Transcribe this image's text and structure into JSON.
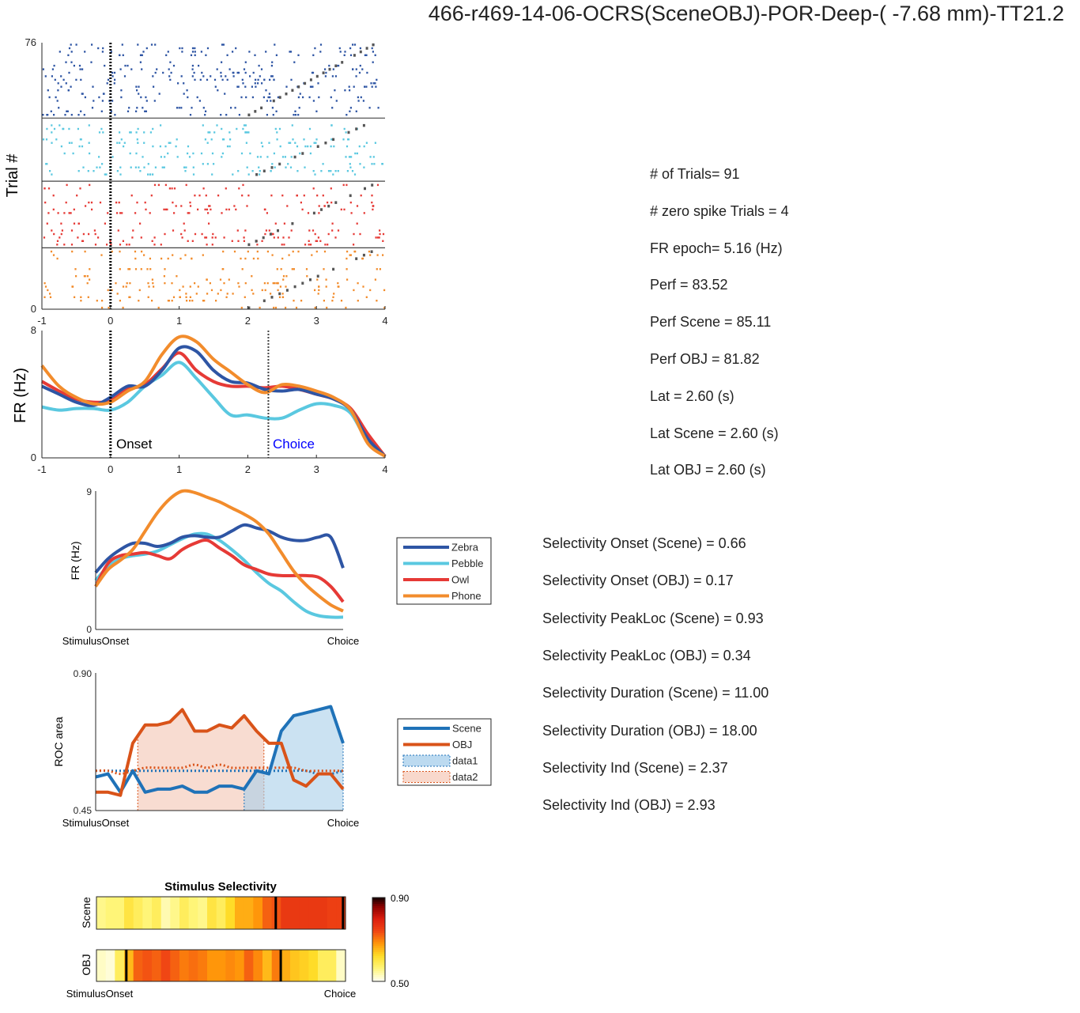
{
  "page_title": "466-r469-14-06-OCRS(SceneOBJ)-POR-Deep-( -7.68 mm)-TT21.2",
  "stats": [
    "# of Trials= 91",
    "# zero spike Trials = 4",
    "FR epoch= 5.16 (Hz)",
    "Perf = 83.52",
    "Perf Scene = 85.11",
    "Perf OBJ = 81.82",
    "Lat = 2.60 (s)",
    "Lat Scene = 2.60 (s)",
    "Lat OBJ = 2.60 (s)"
  ],
  "selectivity": [
    "Selectivity Onset (Scene) = 0.66",
    "Selectivity Onset (OBJ) = 0.17",
    "Selectivity PeakLoc (Scene) = 0.93",
    "Selectivity PeakLoc (OBJ) = 0.34",
    "Selectivity Duration (Scene) = 11.00",
    "Selectivity Duration (OBJ) = 18.00",
    "Selectivity Ind (Scene) = 2.37",
    "Selectivity Ind (OBJ) = 2.93"
  ],
  "colors": {
    "zebra": "#2e55a4",
    "pebble": "#5ac8e0",
    "owl": "#e63a36",
    "phone": "#f28c2c",
    "scene": "#1f72b8",
    "obj": "#d95319",
    "trial_marker": "#555555",
    "choice_line": "#0000ff"
  },
  "chart_data": [
    {
      "type": "scatter",
      "ylabel": "Trial #",
      "xlim": [
        -1,
        4
      ],
      "ylim": [
        0,
        76
      ],
      "xticks": [
        "-1",
        "0",
        "1",
        "2",
        "3",
        "4"
      ],
      "yticks": [
        "0",
        "76"
      ],
      "group_boundaries": [
        17.5,
        36.5,
        54.5
      ],
      "groups": [
        "Zebra",
        "Pebble",
        "Owl",
        "Phone"
      ],
      "group_rows": [
        [
          0,
          17
        ],
        [
          18,
          36
        ],
        [
          37,
          54
        ],
        [
          55,
          76
        ]
      ]
    },
    {
      "type": "line",
      "ylabel": "FR (Hz)",
      "xlim": [
        -1,
        4
      ],
      "ylim": [
        0,
        8
      ],
      "xticks": [
        "-1",
        "0",
        "1",
        "2",
        "3",
        "4"
      ],
      "yticks": [
        "0",
        "8"
      ],
      "events": [
        {
          "label": "Onset",
          "x": 0
        },
        {
          "label": "Choice",
          "x": 2.3
        }
      ],
      "x": [
        -1,
        -0.75,
        -0.5,
        -0.25,
        0,
        0.25,
        0.5,
        0.75,
        1,
        1.25,
        1.5,
        1.75,
        2,
        2.25,
        2.5,
        2.75,
        3,
        3.25,
        3.5,
        3.75,
        4
      ],
      "series": [
        {
          "name": "Zebra",
          "values": [
            4.5,
            4.0,
            3.5,
            3.3,
            3.8,
            4.5,
            4.5,
            5.5,
            6.9,
            6.7,
            5.5,
            4.8,
            4.7,
            4.3,
            4.2,
            4.3,
            4.0,
            3.7,
            3.0,
            1.2,
            0.1
          ]
        },
        {
          "name": "Pebble",
          "values": [
            3.2,
            3.0,
            3.1,
            3.1,
            3.0,
            3.5,
            4.5,
            5.2,
            6.0,
            5.0,
            3.8,
            2.7,
            2.7,
            2.5,
            2.5,
            3.0,
            3.4,
            3.3,
            2.8,
            1.0,
            0.1
          ]
        },
        {
          "name": "Owl",
          "values": [
            4.8,
            4.2,
            3.7,
            3.5,
            3.6,
            4.3,
            4.6,
            5.6,
            6.6,
            5.5,
            4.8,
            4.5,
            4.5,
            4.4,
            4.5,
            4.3,
            4.0,
            3.7,
            3.1,
            1.5,
            0.1
          ]
        },
        {
          "name": "Phone",
          "values": [
            5.8,
            4.5,
            3.8,
            3.4,
            3.5,
            4.2,
            4.8,
            6.5,
            7.6,
            7.3,
            6.2,
            5.4,
            4.6,
            4.1,
            4.6,
            4.5,
            4.2,
            3.8,
            3.0,
            0.9,
            0.1
          ]
        }
      ]
    },
    {
      "type": "line",
      "ylabel": "FR (Hz)",
      "ylim": [
        0,
        9
      ],
      "yticks": [
        "0",
        "9"
      ],
      "x_labels": [
        "StimulusOnset",
        "Choice"
      ],
      "x": [
        0,
        0.05,
        0.1,
        0.15,
        0.2,
        0.25,
        0.3,
        0.35,
        0.4,
        0.45,
        0.5,
        0.55,
        0.6,
        0.65,
        0.7,
        0.75,
        0.8,
        0.85,
        0.9,
        0.95,
        1
      ],
      "legend": [
        "Zebra",
        "Pebble",
        "Owl",
        "Phone"
      ],
      "series": [
        {
          "name": "Zebra",
          "values": [
            3.7,
            4.6,
            5.2,
            5.6,
            5.6,
            5.4,
            5.6,
            6.0,
            6.1,
            6.0,
            6.0,
            6.4,
            6.8,
            6.6,
            6.4,
            6.0,
            5.8,
            5.8,
            6.0,
            6.0,
            4.0
          ]
        },
        {
          "name": "Pebble",
          "values": [
            3.2,
            4.1,
            4.6,
            4.8,
            4.9,
            5.1,
            5.5,
            5.9,
            6.2,
            6.2,
            5.8,
            5.2,
            4.5,
            3.7,
            3.0,
            2.5,
            1.8,
            1.2,
            0.9,
            0.8,
            0.8
          ]
        },
        {
          "name": "Owl",
          "values": [
            2.8,
            4.3,
            4.8,
            4.9,
            5.0,
            4.8,
            4.6,
            5.2,
            5.6,
            5.8,
            5.3,
            4.8,
            4.2,
            3.9,
            3.6,
            3.5,
            3.5,
            3.5,
            3.4,
            2.8,
            1.8
          ]
        },
        {
          "name": "Phone",
          "values": [
            2.8,
            3.9,
            4.5,
            5.2,
            6.4,
            7.6,
            8.5,
            9.0,
            8.9,
            8.6,
            8.3,
            7.9,
            7.5,
            7.0,
            6.2,
            5.0,
            3.8,
            2.9,
            2.2,
            1.6,
            1.2
          ]
        }
      ]
    },
    {
      "type": "area",
      "ylabel": "ROC area",
      "ylim": [
        0.45,
        0.9
      ],
      "yticks": [
        "0.45",
        "0.90"
      ],
      "x_labels": [
        "StimulusOnset",
        "Choice"
      ],
      "x": [
        0,
        0.05,
        0.1,
        0.15,
        0.2,
        0.25,
        0.3,
        0.35,
        0.4,
        0.45,
        0.5,
        0.55,
        0.6,
        0.65,
        0.7,
        0.75,
        0.8,
        0.85,
        0.9,
        0.95,
        1
      ],
      "legend": [
        "Scene",
        "OBJ",
        "data1",
        "data2"
      ],
      "series": [
        {
          "name": "Scene",
          "values": [
            0.56,
            0.57,
            0.51,
            0.58,
            0.51,
            0.52,
            0.52,
            0.53,
            0.51,
            0.51,
            0.53,
            0.53,
            0.52,
            0.58,
            0.57,
            0.71,
            0.76,
            0.77,
            0.78,
            0.79,
            0.67
          ]
        },
        {
          "name": "OBJ",
          "values": [
            0.51,
            0.51,
            0.5,
            0.67,
            0.73,
            0.73,
            0.74,
            0.78,
            0.71,
            0.71,
            0.73,
            0.72,
            0.76,
            0.71,
            0.67,
            0.67,
            0.55,
            0.53,
            0.57,
            0.57,
            0.52
          ]
        },
        {
          "name": "data1",
          "values": [
            0.58,
            0.58,
            0.58,
            0.58,
            0.58,
            0.58,
            0.58,
            0.58,
            0.58,
            0.58,
            0.58,
            0.58,
            0.58,
            0.58,
            0.58,
            0.58,
            0.58,
            0.58,
            0.57,
            0.57,
            0.58
          ]
        },
        {
          "name": "data2",
          "values": [
            0.58,
            0.58,
            0.57,
            0.58,
            0.59,
            0.59,
            0.59,
            0.59,
            0.6,
            0.59,
            0.6,
            0.59,
            0.59,
            0.59,
            0.59,
            0.59,
            0.59,
            0.58,
            0.58,
            0.58,
            0.58
          ]
        }
      ],
      "shaded": [
        {
          "name": "data2",
          "x_range": [
            0.17,
            0.68
          ]
        },
        {
          "name": "data1",
          "x_range": [
            0.6,
            1.0
          ]
        }
      ]
    },
    {
      "type": "heatmap",
      "title": "Stimulus Selectivity",
      "rows": [
        "Scene",
        "OBJ"
      ],
      "x_labels": [
        "StimulusOnset",
        "Choice"
      ],
      "colorbar": {
        "min": 0.5,
        "max": 0.9,
        "labels": [
          "0.50",
          "0.90"
        ]
      },
      "values": [
        [
          0.55,
          0.56,
          0.56,
          0.6,
          0.58,
          0.56,
          0.58,
          0.53,
          0.55,
          0.58,
          0.56,
          0.55,
          0.6,
          0.58,
          0.62,
          0.66,
          0.66,
          0.68,
          0.72,
          0.73,
          0.76,
          0.76,
          0.76,
          0.76,
          0.76,
          0.75,
          0.75
        ],
        [
          0.52,
          0.51,
          0.58,
          0.65,
          0.72,
          0.73,
          0.72,
          0.74,
          0.72,
          0.7,
          0.71,
          0.7,
          0.68,
          0.68,
          0.69,
          0.68,
          0.72,
          0.69,
          0.65,
          0.7,
          0.66,
          0.64,
          0.63,
          0.62,
          0.58,
          0.58,
          0.52
        ]
      ],
      "markers": [
        [
          0.72,
          0.99
        ],
        [
          0.12,
          0.74
        ]
      ]
    }
  ]
}
